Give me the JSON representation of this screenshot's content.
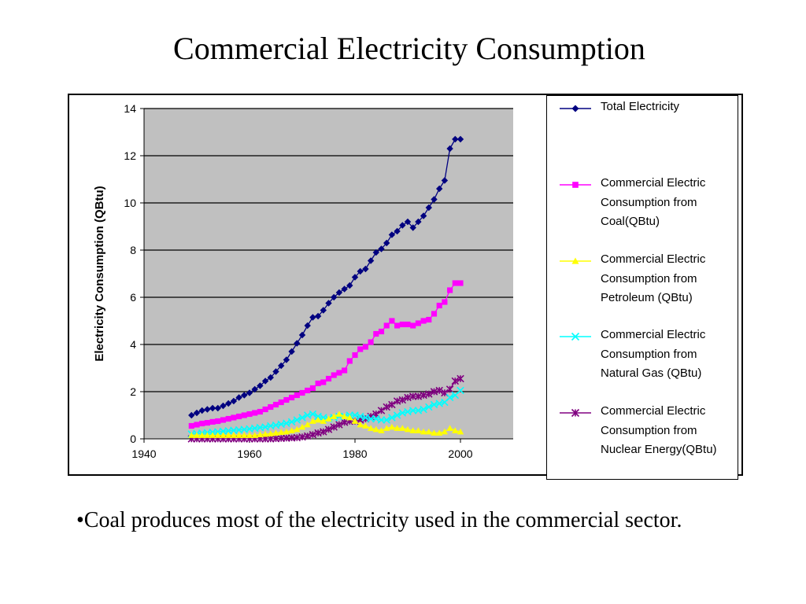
{
  "slide": {
    "title": "Commercial Electricity Consumption",
    "caption": "•Coal produces most of the electricity used in the commercial sector."
  },
  "chart_data": {
    "type": "line",
    "title": "",
    "xlabel": "",
    "ylabel": "Electricity Consumption (QBtu)",
    "xlim": [
      1940,
      2010
    ],
    "ylim": [
      0,
      14
    ],
    "x_ticks": [
      "1940",
      "1960",
      "1980",
      "2000"
    ],
    "y_ticks": [
      "0",
      "2",
      "4",
      "6",
      "8",
      "10",
      "12",
      "14"
    ],
    "grid": "horizontal major gridlines",
    "plot_background": "#c0c0c0",
    "legend_position": "right",
    "x": [
      1949,
      1950,
      1951,
      1952,
      1953,
      1954,
      1955,
      1956,
      1957,
      1958,
      1959,
      1960,
      1961,
      1962,
      1963,
      1964,
      1965,
      1966,
      1967,
      1968,
      1969,
      1970,
      1971,
      1972,
      1973,
      1974,
      1975,
      1976,
      1977,
      1978,
      1979,
      1980,
      1981,
      1982,
      1983,
      1984,
      1985,
      1986,
      1987,
      1988,
      1989,
      1990,
      1991,
      1992,
      1993,
      1994,
      1995,
      1996,
      1997,
      1998,
      1999,
      2000
    ],
    "series": [
      {
        "name": "Total Electricity",
        "color": "#000080",
        "marker": "diamond",
        "values": [
          1.0,
          1.1,
          1.2,
          1.25,
          1.3,
          1.3,
          1.4,
          1.5,
          1.6,
          1.75,
          1.85,
          1.95,
          2.1,
          2.25,
          2.45,
          2.6,
          2.85,
          3.1,
          3.35,
          3.7,
          4.05,
          4.4,
          4.8,
          5.15,
          5.2,
          5.45,
          5.75,
          6.0,
          6.2,
          6.35,
          6.5,
          6.85,
          7.1,
          7.2,
          7.55,
          7.9,
          8.05,
          8.3,
          8.65,
          8.8,
          9.05,
          9.2,
          8.95,
          9.2,
          9.45,
          9.8,
          10.15,
          10.6,
          10.95,
          12.3,
          12.7,
          12.7
        ]
      },
      {
        "name": "Commercial Electric Consumption from Coal(QBtu)",
        "color": "#ff00ff",
        "marker": "square",
        "values": [
          0.55,
          0.6,
          0.65,
          0.68,
          0.72,
          0.75,
          0.8,
          0.85,
          0.9,
          0.95,
          1.0,
          1.05,
          1.1,
          1.15,
          1.25,
          1.35,
          1.45,
          1.55,
          1.65,
          1.75,
          1.85,
          1.95,
          2.05,
          2.15,
          2.35,
          2.4,
          2.55,
          2.7,
          2.8,
          2.9,
          3.3,
          3.55,
          3.8,
          3.9,
          4.1,
          4.45,
          4.55,
          4.8,
          5.0,
          4.8,
          4.85,
          4.85,
          4.8,
          4.9,
          5.0,
          5.05,
          5.3,
          5.65,
          5.8,
          6.3,
          6.6,
          6.6
        ]
      },
      {
        "name": "Commercial Electric Consumption from Petroleum (QBtu)",
        "color": "#ffff00",
        "marker": "triangle",
        "values": [
          0.15,
          0.15,
          0.15,
          0.15,
          0.15,
          0.15,
          0.15,
          0.15,
          0.15,
          0.15,
          0.15,
          0.15,
          0.15,
          0.18,
          0.2,
          0.22,
          0.25,
          0.28,
          0.3,
          0.35,
          0.4,
          0.5,
          0.6,
          0.75,
          0.8,
          0.75,
          0.85,
          0.95,
          1.05,
          0.95,
          0.9,
          0.75,
          0.6,
          0.55,
          0.45,
          0.4,
          0.35,
          0.45,
          0.5,
          0.45,
          0.45,
          0.4,
          0.35,
          0.35,
          0.3,
          0.3,
          0.25,
          0.25,
          0.3,
          0.45,
          0.35,
          0.3
        ]
      },
      {
        "name": "Commercial Electric Consumption from Natural Gas (QBtu)",
        "color": "#00ffff",
        "marker": "x",
        "values": [
          0.2,
          0.22,
          0.24,
          0.26,
          0.28,
          0.3,
          0.32,
          0.34,
          0.36,
          0.38,
          0.4,
          0.42,
          0.45,
          0.48,
          0.5,
          0.55,
          0.58,
          0.62,
          0.66,
          0.72,
          0.8,
          0.9,
          1.0,
          1.05,
          0.95,
          0.9,
          0.85,
          0.9,
          0.95,
          0.95,
          1.0,
          1.0,
          0.95,
          0.9,
          0.85,
          0.85,
          0.8,
          0.8,
          0.9,
          1.0,
          1.1,
          1.15,
          1.2,
          1.2,
          1.25,
          1.35,
          1.45,
          1.5,
          1.55,
          1.75,
          1.85,
          2.05
        ]
      },
      {
        "name": "Commercial Electric Consumption from Nuclear Energy(QBtu)",
        "color": "#800080",
        "marker": "asterisk",
        "values": [
          0,
          0,
          0,
          0,
          0,
          0,
          0,
          0,
          0,
          0,
          0,
          0,
          0,
          0,
          0,
          0,
          0.01,
          0.02,
          0.03,
          0.04,
          0.05,
          0.08,
          0.12,
          0.18,
          0.25,
          0.3,
          0.4,
          0.5,
          0.6,
          0.7,
          0.75,
          0.75,
          0.8,
          0.85,
          0.95,
          1.05,
          1.2,
          1.35,
          1.45,
          1.6,
          1.65,
          1.75,
          1.8,
          1.8,
          1.85,
          1.9,
          2.0,
          2.05,
          1.95,
          2.1,
          2.45,
          2.55
        ]
      }
    ]
  }
}
